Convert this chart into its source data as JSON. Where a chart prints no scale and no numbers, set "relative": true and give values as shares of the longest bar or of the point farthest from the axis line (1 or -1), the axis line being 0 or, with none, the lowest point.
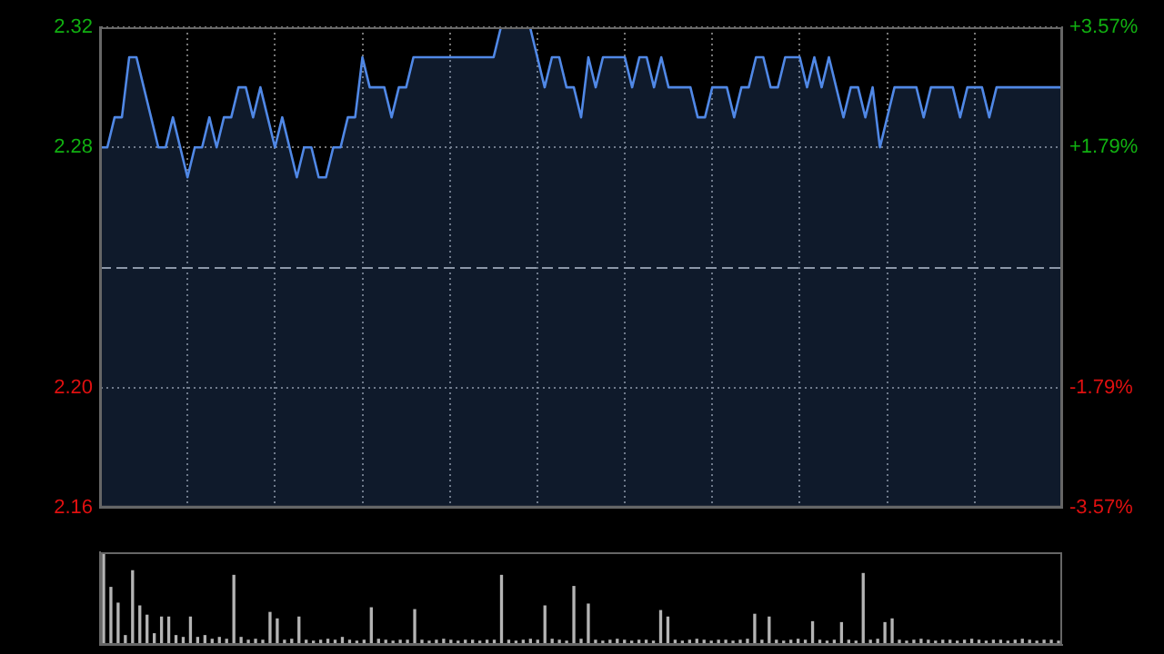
{
  "chart_data": [
    {
      "type": "area",
      "categories": [
        null,
        null,
        null,
        null,
        null,
        null,
        null,
        null,
        null,
        null,
        null,
        null,
        null,
        null,
        null,
        null,
        null,
        null,
        null,
        null,
        null,
        null,
        null,
        null,
        null,
        null,
        null,
        null,
        null,
        null,
        null,
        null,
        null,
        null,
        null,
        null,
        null,
        null,
        null,
        null,
        null,
        null,
        null,
        null,
        null,
        null,
        null,
        null,
        null,
        null,
        null,
        null,
        null,
        null,
        null,
        null,
        null,
        null,
        null,
        null,
        null,
        null,
        null,
        null,
        null,
        null,
        null,
        null,
        null,
        null,
        null,
        null,
        null,
        null,
        null,
        null,
        null,
        null,
        null,
        null,
        null,
        null,
        null,
        null,
        null,
        null,
        null,
        null,
        null,
        null,
        null,
        null,
        null,
        null,
        null,
        null,
        null,
        null,
        null,
        null,
        null,
        null,
        null,
        null,
        null,
        null,
        null,
        null,
        null,
        null,
        null,
        null,
        null,
        null,
        null,
        null,
        null,
        null,
        null,
        null,
        null,
        null,
        null,
        null,
        null,
        null,
        null,
        null,
        null,
        null,
        null,
        null,
        null
      ],
      "series": [
        {
          "color": "#5088e6",
          "values": [
            2.28,
            2.28,
            2.29,
            2.29,
            2.31,
            2.31,
            2.3,
            2.29,
            2.28,
            2.28,
            2.29,
            2.28,
            2.27,
            2.28,
            2.28,
            2.29,
            2.28,
            2.29,
            2.29,
            2.3,
            2.3,
            2.29,
            2.3,
            2.29,
            2.28,
            2.29,
            2.28,
            2.27,
            2.28,
            2.28,
            2.27,
            2.27,
            2.28,
            2.28,
            2.29,
            2.29,
            2.31,
            2.3,
            2.3,
            2.3,
            2.29,
            2.3,
            2.3,
            2.31,
            2.31,
            2.31,
            2.31,
            2.31,
            2.31,
            2.31,
            2.31,
            2.31,
            2.31,
            2.31,
            2.31,
            2.32,
            2.32,
            2.32,
            2.32,
            2.32,
            2.31,
            2.3,
            2.31,
            2.31,
            2.3,
            2.3,
            2.29,
            2.31,
            2.3,
            2.31,
            2.31,
            2.31,
            2.31,
            2.3,
            2.31,
            2.31,
            2.3,
            2.31,
            2.3,
            2.3,
            2.3,
            2.3,
            2.29,
            2.29,
            2.3,
            2.3,
            2.3,
            2.29,
            2.3,
            2.3,
            2.31,
            2.31,
            2.3,
            2.3,
            2.31,
            2.31,
            2.31,
            2.3,
            2.31,
            2.3,
            2.31,
            2.3,
            2.29,
            2.3,
            2.3,
            2.29,
            2.3,
            2.28,
            2.29,
            2.3,
            2.3,
            2.3,
            2.3,
            2.29,
            2.3,
            2.3,
            2.3,
            2.3,
            2.29,
            2.3,
            2.3,
            2.3,
            2.29,
            2.3,
            2.3,
            2.3,
            2.3,
            2.3,
            2.3,
            2.3,
            2.3,
            2.3,
            2.3
          ]
        }
      ],
      "ylim": [
        2.16,
        2.32
      ],
      "yticks": [
        2.16,
        {
          "value": 2.2,
          "label": "2.20"
        },
        2.28,
        2.32
      ],
      "y2lim": [
        -3.57,
        3.57
      ],
      "y2ticks": [
        {
          "value": -3.57,
          "label": "-3.57%"
        },
        {
          "value": -1.79,
          "label": "-1.79%"
        },
        {
          "value": 1.79,
          "label": "+1.79%"
        },
        {
          "value": 3.57,
          "label": "+3.57%"
        }
      ],
      "ref_lines": [
        {
          "axis": "y",
          "value": 2.24,
          "line_style": "dashed",
          "color": "#9a9a9a"
        }
      ],
      "grid": true,
      "tick_labels": "y",
      "legend": false
    },
    {
      "type": "bar",
      "relative": true,
      "color": "#b4b4b4",
      "tick_labels": false,
      "legend": false,
      "categories": [
        null,
        null,
        null,
        null,
        null,
        null,
        null,
        null,
        null,
        null,
        null,
        null,
        null,
        null,
        null,
        null,
        null,
        null,
        null,
        null,
        null,
        null,
        null,
        null,
        null,
        null,
        null,
        null,
        null,
        null,
        null,
        null,
        null,
        null,
        null,
        null,
        null,
        null,
        null,
        null,
        null,
        null,
        null,
        null,
        null,
        null,
        null,
        null,
        null,
        null,
        null,
        null,
        null,
        null,
        null,
        null,
        null,
        null,
        null,
        null,
        null,
        null,
        null,
        null,
        null,
        null,
        null,
        null,
        null,
        null,
        null,
        null,
        null,
        null,
        null,
        null,
        null,
        null,
        null,
        null,
        null,
        null,
        null,
        null,
        null,
        null,
        null,
        null,
        null,
        null,
        null,
        null,
        null,
        null,
        null,
        null,
        null,
        null,
        null,
        null,
        null,
        null,
        null,
        null,
        null,
        null,
        null,
        null,
        null,
        null,
        null,
        null,
        null,
        null,
        null,
        null,
        null,
        null,
        null,
        null,
        null,
        null,
        null,
        null,
        null,
        null,
        null,
        null,
        null,
        null,
        null,
        null,
        null
      ],
      "values": [
        1.0,
        0.62,
        0.45,
        0.1,
        0.8,
        0.42,
        0.32,
        0.12,
        0.3,
        0.3,
        0.1,
        0.08,
        0.3,
        0.08,
        0.1,
        0.06,
        0.08,
        0.06,
        0.75,
        0.08,
        0.05,
        0.06,
        0.05,
        0.35,
        0.28,
        0.05,
        0.06,
        0.3,
        0.05,
        0.04,
        0.05,
        0.06,
        0.05,
        0.08,
        0.05,
        0.04,
        0.05,
        0.4,
        0.06,
        0.05,
        0.04,
        0.05,
        0.05,
        0.38,
        0.05,
        0.04,
        0.05,
        0.06,
        0.05,
        0.04,
        0.05,
        0.05,
        0.04,
        0.05,
        0.05,
        0.75,
        0.05,
        0.04,
        0.05,
        0.06,
        0.05,
        0.42,
        0.06,
        0.05,
        0.04,
        0.63,
        0.06,
        0.44,
        0.05,
        0.04,
        0.05,
        0.06,
        0.05,
        0.04,
        0.05,
        0.05,
        0.04,
        0.37,
        0.3,
        0.05,
        0.04,
        0.05,
        0.06,
        0.05,
        0.04,
        0.05,
        0.05,
        0.04,
        0.05,
        0.06,
        0.33,
        0.05,
        0.3,
        0.05,
        0.04,
        0.05,
        0.06,
        0.05,
        0.25,
        0.05,
        0.04,
        0.05,
        0.24,
        0.05,
        0.04,
        0.77,
        0.05,
        0.06,
        0.24,
        0.28,
        0.05,
        0.04,
        0.05,
        0.06,
        0.05,
        0.04,
        0.05,
        0.05,
        0.04,
        0.05,
        0.06,
        0.05,
        0.04,
        0.05,
        0.05,
        0.04,
        0.05,
        0.06,
        0.05,
        0.04,
        0.05,
        0.05,
        0.04
      ]
    }
  ]
}
